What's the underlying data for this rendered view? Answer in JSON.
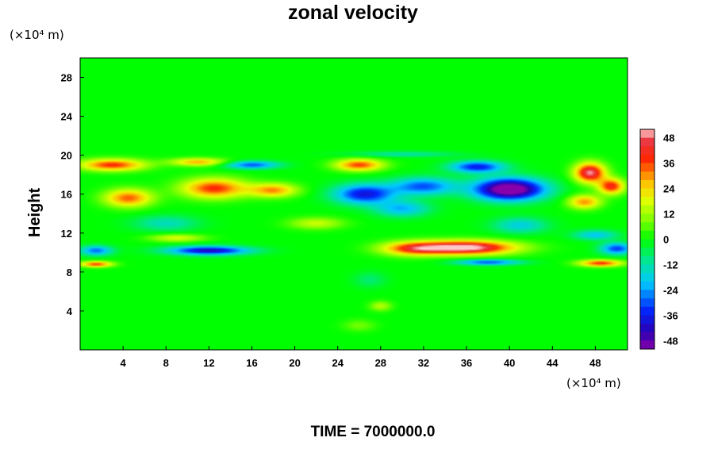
{
  "chart_data": {
    "type": "heatmap",
    "title": "zonal velocity",
    "ylabel": "Height",
    "x_unit": "(×10⁴ m)",
    "y_unit": "(×10⁴ m)",
    "xlim": [
      0,
      51
    ],
    "ylim": [
      0,
      30
    ],
    "xticks": [
      4,
      8,
      12,
      16,
      20,
      24,
      28,
      32,
      36,
      40,
      44,
      48
    ],
    "yticks": [
      4,
      8,
      12,
      16,
      20,
      24,
      28
    ],
    "colorbar": {
      "ticks": [
        48,
        36,
        24,
        12,
        0,
        -12,
        -24,
        -36,
        -48
      ],
      "range": [
        -52,
        52
      ]
    },
    "features": [
      {
        "x": 40,
        "y": 16.5,
        "sx": 3.2,
        "sy": 1.1,
        "value": -62
      },
      {
        "x": 37,
        "y": 18.8,
        "sx": 2.5,
        "sy": 0.6,
        "value": -36
      },
      {
        "x": 32,
        "y": 16.8,
        "sx": 3.0,
        "sy": 0.9,
        "value": -30
      },
      {
        "x": 26.5,
        "y": 16.0,
        "sx": 2.8,
        "sy": 1.0,
        "value": -38
      },
      {
        "x": 30,
        "y": 14.5,
        "sx": 2.5,
        "sy": 0.8,
        "value": -22
      },
      {
        "x": 41,
        "y": 12.8,
        "sx": 2.5,
        "sy": 0.8,
        "value": -18
      },
      {
        "x": 12,
        "y": 10.2,
        "sx": 3.8,
        "sy": 0.45,
        "value": -42
      },
      {
        "x": 1.5,
        "y": 10.2,
        "sx": 1.5,
        "sy": 0.5,
        "value": -28
      },
      {
        "x": 50,
        "y": 10.4,
        "sx": 1.5,
        "sy": 0.6,
        "value": -32
      },
      {
        "x": 48,
        "y": 11.8,
        "sx": 2.0,
        "sy": 0.5,
        "value": -20
      },
      {
        "x": 16,
        "y": 19.0,
        "sx": 2.5,
        "sy": 0.4,
        "value": -30
      },
      {
        "x": 8,
        "y": 13.0,
        "sx": 3.0,
        "sy": 0.8,
        "value": -14
      },
      {
        "x": 30,
        "y": 20.1,
        "sx": 5.0,
        "sy": 0.3,
        "value": -12
      },
      {
        "x": 38,
        "y": 9.0,
        "sx": 3.0,
        "sy": 0.3,
        "value": -30
      },
      {
        "x": 36,
        "y": 10.5,
        "sx": 4.5,
        "sy": 0.7,
        "value": 55
      },
      {
        "x": 31,
        "y": 10.4,
        "sx": 3.0,
        "sy": 0.7,
        "value": 32
      },
      {
        "x": 12.5,
        "y": 16.6,
        "sx": 3.0,
        "sy": 1.0,
        "value": 38
      },
      {
        "x": 18,
        "y": 16.4,
        "sx": 2.2,
        "sy": 0.7,
        "value": 30
      },
      {
        "x": 4.5,
        "y": 15.6,
        "sx": 2.2,
        "sy": 0.9,
        "value": 34
      },
      {
        "x": 3,
        "y": 19.0,
        "sx": 3.0,
        "sy": 0.6,
        "value": 38
      },
      {
        "x": 11,
        "y": 19.3,
        "sx": 2.5,
        "sy": 0.4,
        "value": 28
      },
      {
        "x": 26,
        "y": 19.0,
        "sx": 2.2,
        "sy": 0.6,
        "value": 36
      },
      {
        "x": 47.5,
        "y": 18.2,
        "sx": 1.4,
        "sy": 1.0,
        "value": 50
      },
      {
        "x": 49.5,
        "y": 16.8,
        "sx": 1.2,
        "sy": 0.8,
        "value": 40
      },
      {
        "x": 47,
        "y": 15.2,
        "sx": 1.5,
        "sy": 0.7,
        "value": 30
      },
      {
        "x": 48.5,
        "y": 8.9,
        "sx": 2.0,
        "sy": 0.35,
        "value": 38
      },
      {
        "x": 1.5,
        "y": 8.8,
        "sx": 1.5,
        "sy": 0.3,
        "value": 36
      },
      {
        "x": 22,
        "y": 13.0,
        "sx": 2.5,
        "sy": 0.6,
        "value": 16
      },
      {
        "x": 9,
        "y": 11.5,
        "sx": 2.5,
        "sy": 0.4,
        "value": 18
      },
      {
        "x": 28,
        "y": 4.5,
        "sx": 1.0,
        "sy": 0.5,
        "value": 14
      },
      {
        "x": 27,
        "y": 7.2,
        "sx": 1.5,
        "sy": 0.8,
        "value": -8
      },
      {
        "x": 26,
        "y": 2.5,
        "sx": 1.5,
        "sy": 0.6,
        "value": 8
      }
    ]
  },
  "footer": {
    "time_label": "TIME = 7000000.0"
  }
}
